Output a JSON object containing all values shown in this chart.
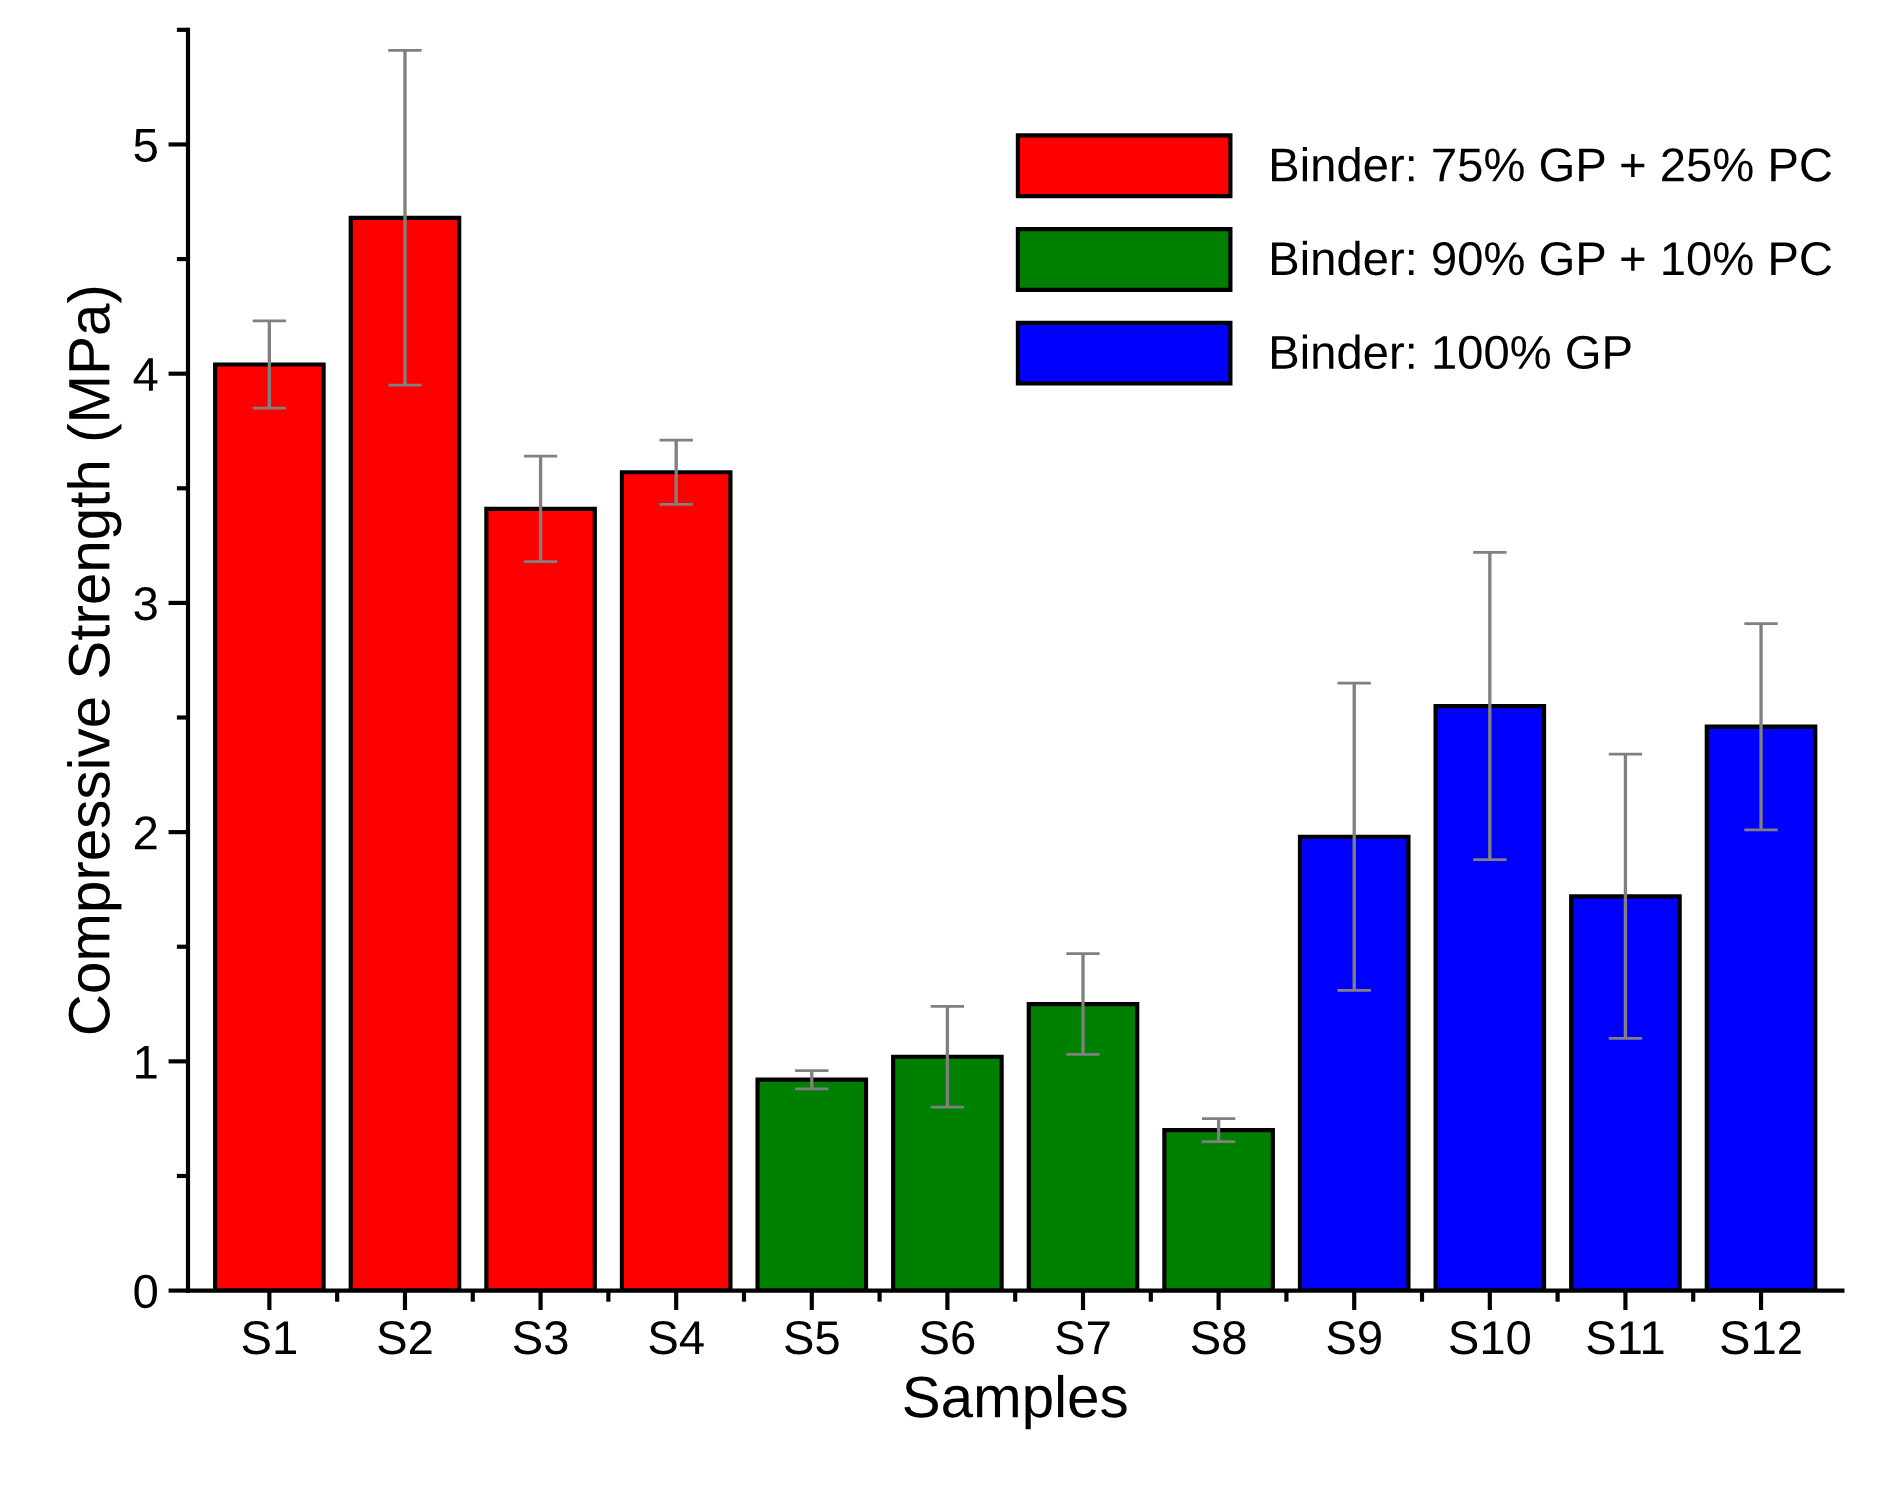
{
  "chart_data": {
    "type": "bar",
    "xlabel": "Samples",
    "ylabel": "Compressive Strength (MPa)",
    "categories": [
      "S1",
      "S2",
      "S3",
      "S4",
      "S5",
      "S6",
      "S7",
      "S8",
      "S9",
      "S10",
      "S11",
      "S12"
    ],
    "series": [
      {
        "name": "Binder: 75% GP + 25% PC",
        "color": "#ff0000",
        "values": [
          4.04,
          4.68,
          3.41,
          3.57,
          null,
          null,
          null,
          null,
          null,
          null,
          null,
          null
        ],
        "errors": [
          0.19,
          0.73,
          0.23,
          0.14,
          null,
          null,
          null,
          null,
          null,
          null,
          null,
          null
        ]
      },
      {
        "name": "Binder: 90% GP + 10% PC",
        "color": "#008000",
        "values": [
          null,
          null,
          null,
          null,
          0.92,
          1.02,
          1.25,
          0.7,
          null,
          null,
          null,
          null
        ],
        "errors": [
          null,
          null,
          null,
          null,
          0.04,
          0.22,
          0.22,
          0.05,
          null,
          null,
          null,
          null
        ]
      },
      {
        "name": "Binder: 100% GP",
        "color": "#0000ff",
        "values": [
          null,
          null,
          null,
          null,
          null,
          null,
          null,
          null,
          1.98,
          2.55,
          1.72,
          2.46
        ],
        "errors": [
          null,
          null,
          null,
          null,
          null,
          null,
          null,
          null,
          0.67,
          0.67,
          0.62,
          0.45
        ]
      }
    ],
    "ylim": [
      0,
      5.5
    ],
    "yticks": [
      0,
      1,
      2,
      3,
      4,
      5
    ],
    "grid": false,
    "legend": "top right"
  }
}
